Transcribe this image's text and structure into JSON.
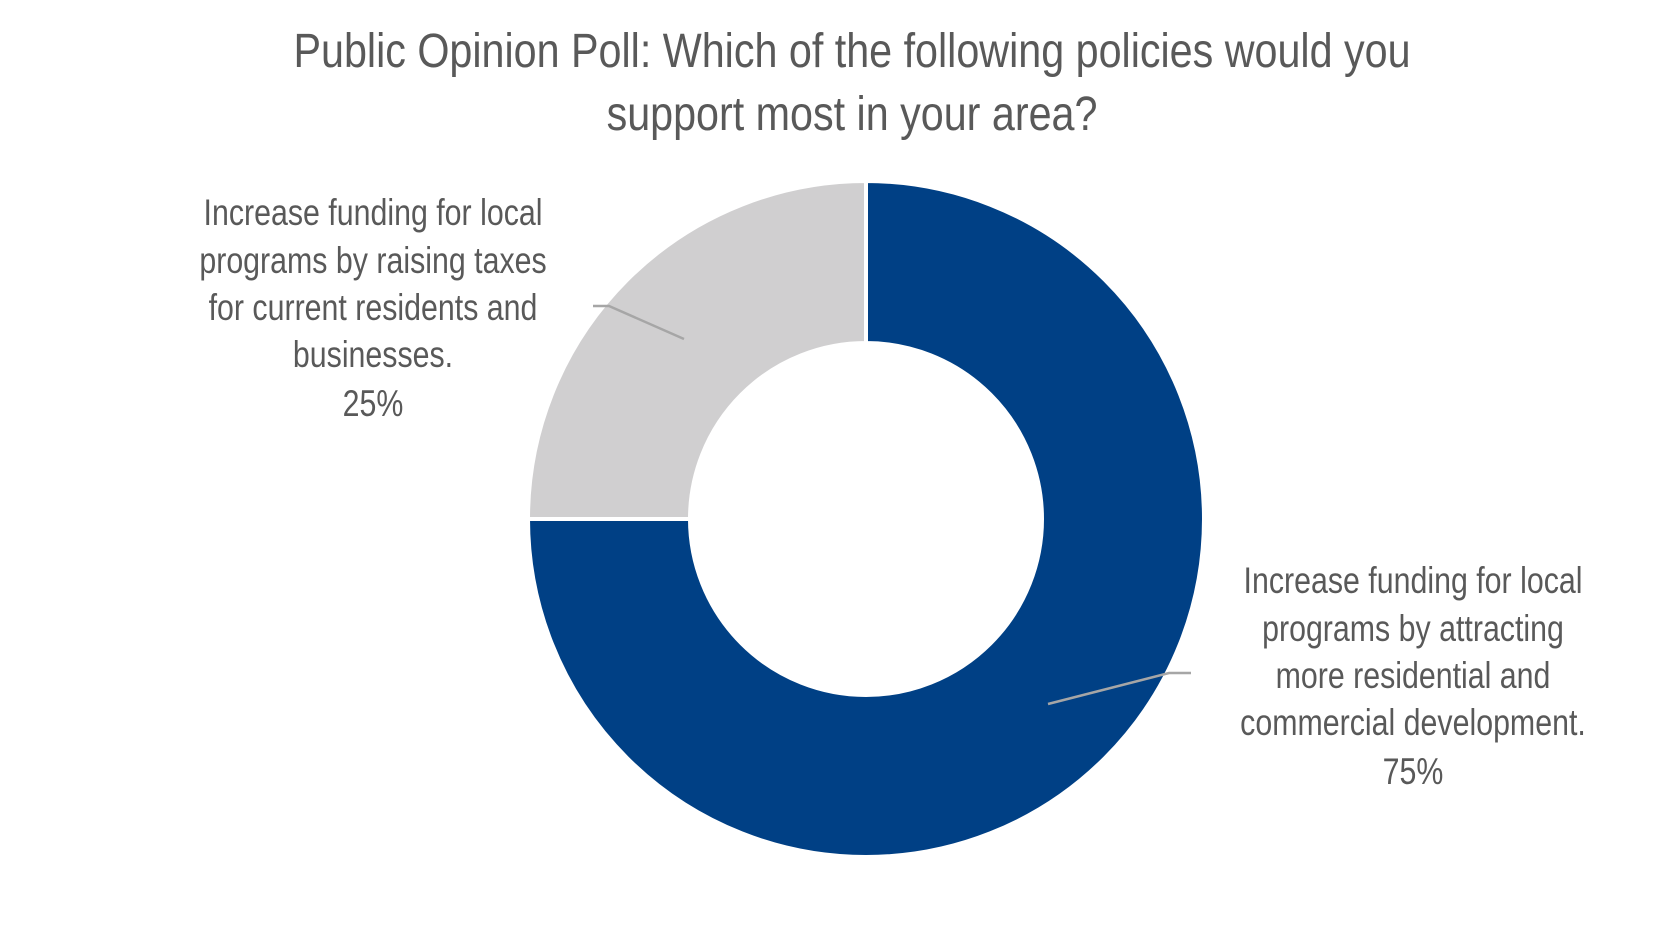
{
  "chart_data": {
    "type": "pie",
    "variant": "donut",
    "title": [
      "Public Opinion Poll: Which of the following policies would you",
      "support most in your area?"
    ],
    "slices": [
      {
        "label": [
          "Increase funding for local",
          "programs by attracting",
          "more residential and",
          "commercial development."
        ],
        "value": 75,
        "value_label": "75%",
        "color": "#004085"
      },
      {
        "label": [
          "Increase funding for local",
          "programs by raising taxes",
          "for current residents and",
          "businesses."
        ],
        "value": 25,
        "value_label": "25%",
        "color": "#D0CFD0"
      }
    ],
    "start_angle": "top, clockwise",
    "legend": "none"
  }
}
